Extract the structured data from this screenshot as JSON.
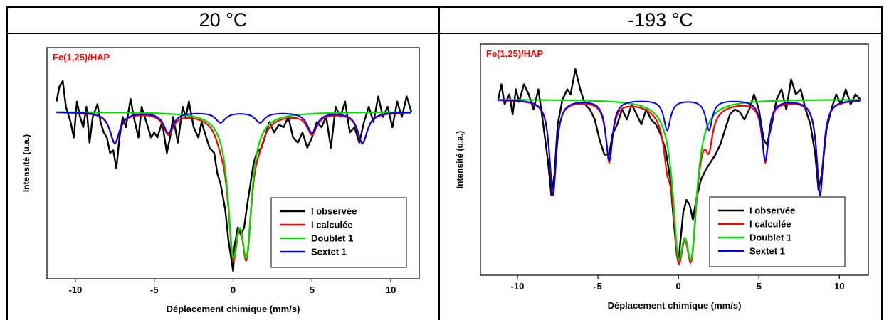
{
  "columns": [
    {
      "header": "20 °C"
    },
    {
      "header": "-193 °C"
    }
  ],
  "colors": {
    "observed": "#000000",
    "calculated": "#ff0000",
    "doublet": "#00dd00",
    "sextet": "#0000ee",
    "sample_label": "#ff0000"
  },
  "chart_data": [
    {
      "type": "line",
      "sample_label": "Fe(1,25)/HAP",
      "xlabel": "Déplacement chimique (mm/s)",
      "ylabel": "Intensité (u.a.)",
      "xlim": [
        -11.8,
        11.8
      ],
      "xticks": [
        -10,
        -5,
        0,
        5,
        10
      ],
      "ylim": [
        0.935,
        1.025
      ],
      "legend_position": "bottom-right",
      "legend": [
        "I observée",
        "I calculée",
        "Doublet 1",
        "Sextet 1"
      ],
      "sextet": {
        "lines": [
          -7.5,
          -4.1,
          -0.8,
          1.7,
          5.0,
          8.2
        ],
        "depths": [
          0.012,
          0.008,
          0.004,
          0.004,
          0.008,
          0.012
        ],
        "width": 0.75
      },
      "doublet": {
        "centers": [
          0.0,
          0.85
        ],
        "depths": [
          0.048,
          0.048
        ],
        "width": 0.8
      },
      "baseline": 1.0,
      "series": [
        {
          "name": "I observée",
          "x": [
            -11.2,
            -11.0,
            -10.8,
            -10.6,
            -10.3,
            -10.1,
            -9.9,
            -9.7,
            -9.5,
            -9.3,
            -9.1,
            -8.9,
            -8.6,
            -8.4,
            -8.2,
            -8.0,
            -7.8,
            -7.6,
            -7.4,
            -7.2,
            -7.0,
            -6.8,
            -6.5,
            -6.3,
            -6.0,
            -5.8,
            -5.5,
            -5.2,
            -5.0,
            -4.8,
            -4.5,
            -4.2,
            -4.0,
            -3.8,
            -3.5,
            -3.2,
            -3.0,
            -2.8,
            -2.5,
            -2.2,
            -2.0,
            -1.8,
            -1.5,
            -1.2,
            -1.0,
            -0.8,
            -0.5,
            -0.3,
            -0.1,
            0.0,
            0.1,
            0.3,
            0.5,
            0.7,
            0.9,
            1.1,
            1.3,
            1.5,
            1.8,
            2.0,
            2.3,
            2.6,
            2.9,
            3.2,
            3.5,
            3.8,
            4.1,
            4.4,
            4.7,
            5.0,
            5.3,
            5.6,
            5.9,
            6.2,
            6.5,
            6.8,
            7.1,
            7.4,
            7.7,
            8.0,
            8.3,
            8.6,
            8.9,
            9.2,
            9.5,
            9.8,
            10.1,
            10.4,
            10.7,
            11.0,
            11.3
          ],
          "y": [
            1.004,
            1.01,
            1.012,
            1.002,
            0.996,
            0.99,
            1.004,
            0.998,
            0.994,
            1.002,
            0.988,
            0.998,
            1.003,
            0.996,
            0.992,
            0.99,
            0.984,
            0.985,
            0.978,
            0.99,
            0.998,
            0.994,
            1.005,
            0.998,
            0.99,
            1.002,
            0.996,
            0.99,
            0.992,
            0.99,
            0.996,
            0.984,
            0.99,
            0.998,
            0.988,
            1.002,
            0.998,
            1.004,
            0.994,
            0.99,
            0.996,
            0.992,
            0.986,
            0.984,
            0.976,
            0.972,
            0.962,
            0.95,
            0.942,
            0.938,
            0.948,
            0.955,
            0.952,
            0.955,
            0.964,
            0.972,
            0.98,
            0.984,
            0.986,
            0.99,
            0.996,
            0.992,
            0.995,
            0.994,
            0.998,
            0.99,
            0.988,
            0.992,
            0.986,
            0.99,
            0.996,
            0.994,
            0.998,
            0.986,
            1.002,
            0.998,
            1.004,
            0.992,
            0.994,
            0.988,
            0.996,
            1.002,
            0.996,
            1.006,
            0.998,
            1.002,
            0.994,
            1.004,
            0.998,
            1.006,
            1.0
          ]
        }
      ]
    },
    {
      "type": "line",
      "sample_label": "Fe(1,25)/HAP",
      "xlabel": "Déplacement chimique (mm/s)",
      "ylabel": "Intensité (u.a.)",
      "xlim": [
        -12.3,
        11.8
      ],
      "xticks": [
        -10,
        -5,
        0,
        5,
        10
      ],
      "ylim": [
        0.93,
        1.022
      ],
      "legend_position": "bottom-right",
      "legend": [
        "I observée",
        "I calculée",
        "Doublet 1",
        "Sextet 1"
      ],
      "sextet": {
        "lines": [
          -7.8,
          -4.3,
          -0.7,
          1.9,
          5.4,
          8.8
        ],
        "depths": [
          0.038,
          0.024,
          0.012,
          0.012,
          0.024,
          0.038
        ],
        "width": 0.5
      },
      "doublet": {
        "centers": [
          0.0,
          0.8
        ],
        "depths": [
          0.052,
          0.052
        ],
        "width": 0.85
      },
      "baseline": 1.0,
      "series": [
        {
          "name": "I observée",
          "x": [
            -11.2,
            -11.0,
            -10.8,
            -10.5,
            -10.3,
            -10.1,
            -9.9,
            -9.6,
            -9.3,
            -9.0,
            -8.7,
            -8.4,
            -8.1,
            -7.9,
            -7.7,
            -7.5,
            -7.2,
            -6.9,
            -6.7,
            -6.4,
            -6.1,
            -5.8,
            -5.5,
            -5.2,
            -4.9,
            -4.6,
            -4.3,
            -4.1,
            -3.8,
            -3.5,
            -3.2,
            -2.9,
            -2.6,
            -2.3,
            -2.0,
            -1.7,
            -1.4,
            -1.1,
            -0.8,
            -0.5,
            -0.3,
            -0.1,
            0.0,
            0.1,
            0.3,
            0.5,
            0.7,
            0.9,
            1.1,
            1.4,
            1.7,
            2.0,
            2.3,
            2.6,
            2.9,
            3.2,
            3.5,
            3.8,
            4.1,
            4.4,
            4.7,
            5.0,
            5.3,
            5.5,
            5.8,
            6.1,
            6.4,
            6.7,
            7.0,
            7.3,
            7.6,
            7.9,
            8.2,
            8.5,
            8.7,
            8.9,
            9.2,
            9.5,
            9.8,
            10.1,
            10.4,
            10.7,
            11.0,
            11.3
          ],
          "y": [
            1.0,
            1.006,
            0.998,
            1.002,
            0.994,
            1.004,
            0.999,
            1.006,
            1.002,
            0.996,
            1.004,
            0.99,
            0.975,
            0.962,
            0.97,
            0.99,
            1.0,
            1.004,
            1.002,
            1.012,
            1.004,
            0.998,
            0.996,
            0.992,
            0.984,
            0.978,
            0.978,
            0.986,
            0.99,
            0.996,
            0.992,
            0.998,
            0.994,
            0.99,
            0.996,
            0.992,
            0.99,
            0.986,
            0.98,
            0.968,
            0.952,
            0.938,
            0.935,
            0.942,
            0.955,
            0.96,
            0.958,
            0.952,
            0.96,
            0.968,
            0.972,
            0.975,
            0.978,
            0.982,
            0.988,
            0.994,
            0.996,
            0.995,
            0.992,
            0.996,
            1.002,
            0.996,
            0.984,
            0.982,
            0.99,
            1.0,
            1.004,
            0.996,
            1.008,
            1.002,
            1.004,
            0.996,
            0.99,
            0.978,
            0.964,
            0.97,
            0.988,
            0.996,
            1.002,
            0.998,
            1.004,
            0.998,
            1.002,
            1.0
          ]
        }
      ]
    }
  ]
}
